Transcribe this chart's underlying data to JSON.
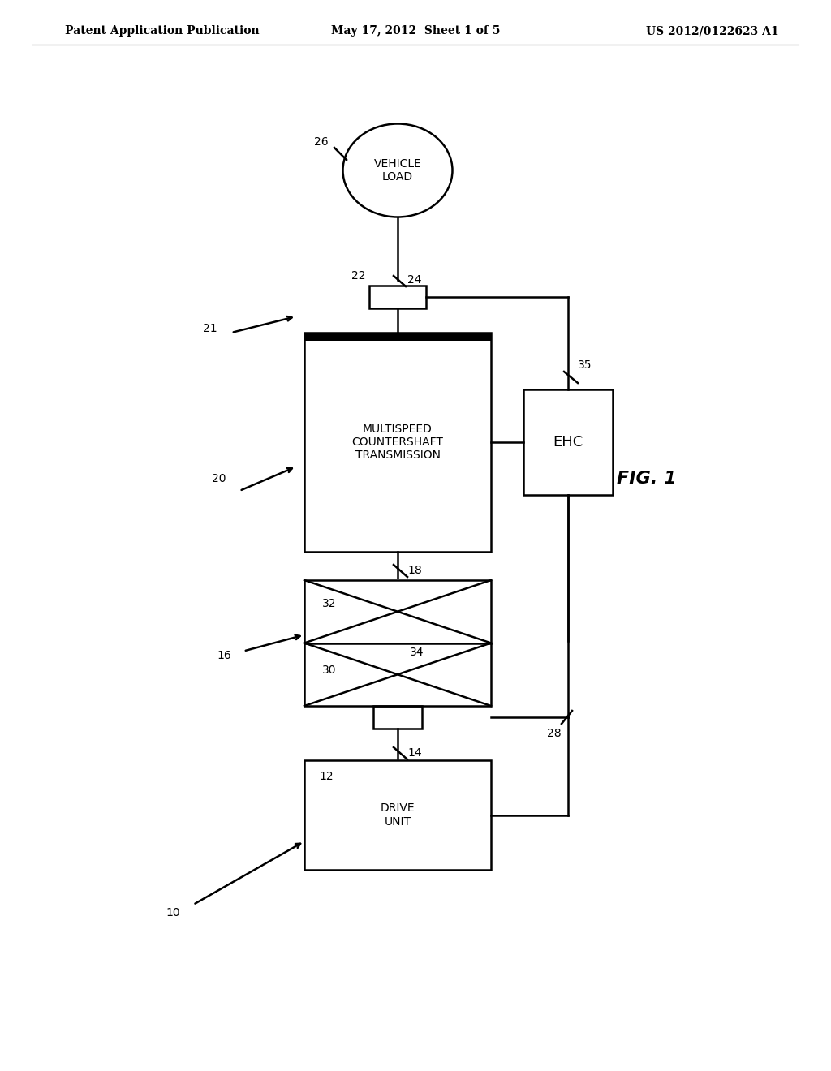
{
  "bg_color": "#ffffff",
  "header_left": "Patent Application Publication",
  "header_center": "May 17, 2012  Sheet 1 of 5",
  "header_right": "US 2012/0122623 A1",
  "fig_label": "FIG. 1",
  "vehicle_load_label": "VEHICLE\nLOAD",
  "vehicle_load_num": "26",
  "label_24": "24",
  "label_22_num": "22",
  "transmission_label": "MULTISPEED\nCOUNTERSHAFT\nTRANSMISSION",
  "label_20": "20",
  "label_21": "21",
  "ehc_label": "EHC",
  "label_35": "35",
  "label_18": "18",
  "torque_label_16": "16",
  "torque_num_30": "30",
  "torque_num_32": "32",
  "torque_num_34": "34",
  "label_28": "28",
  "drive_unit_label": "DRIVE\nUNIT",
  "label_12": "12",
  "label_14": "14",
  "label_10": "10"
}
